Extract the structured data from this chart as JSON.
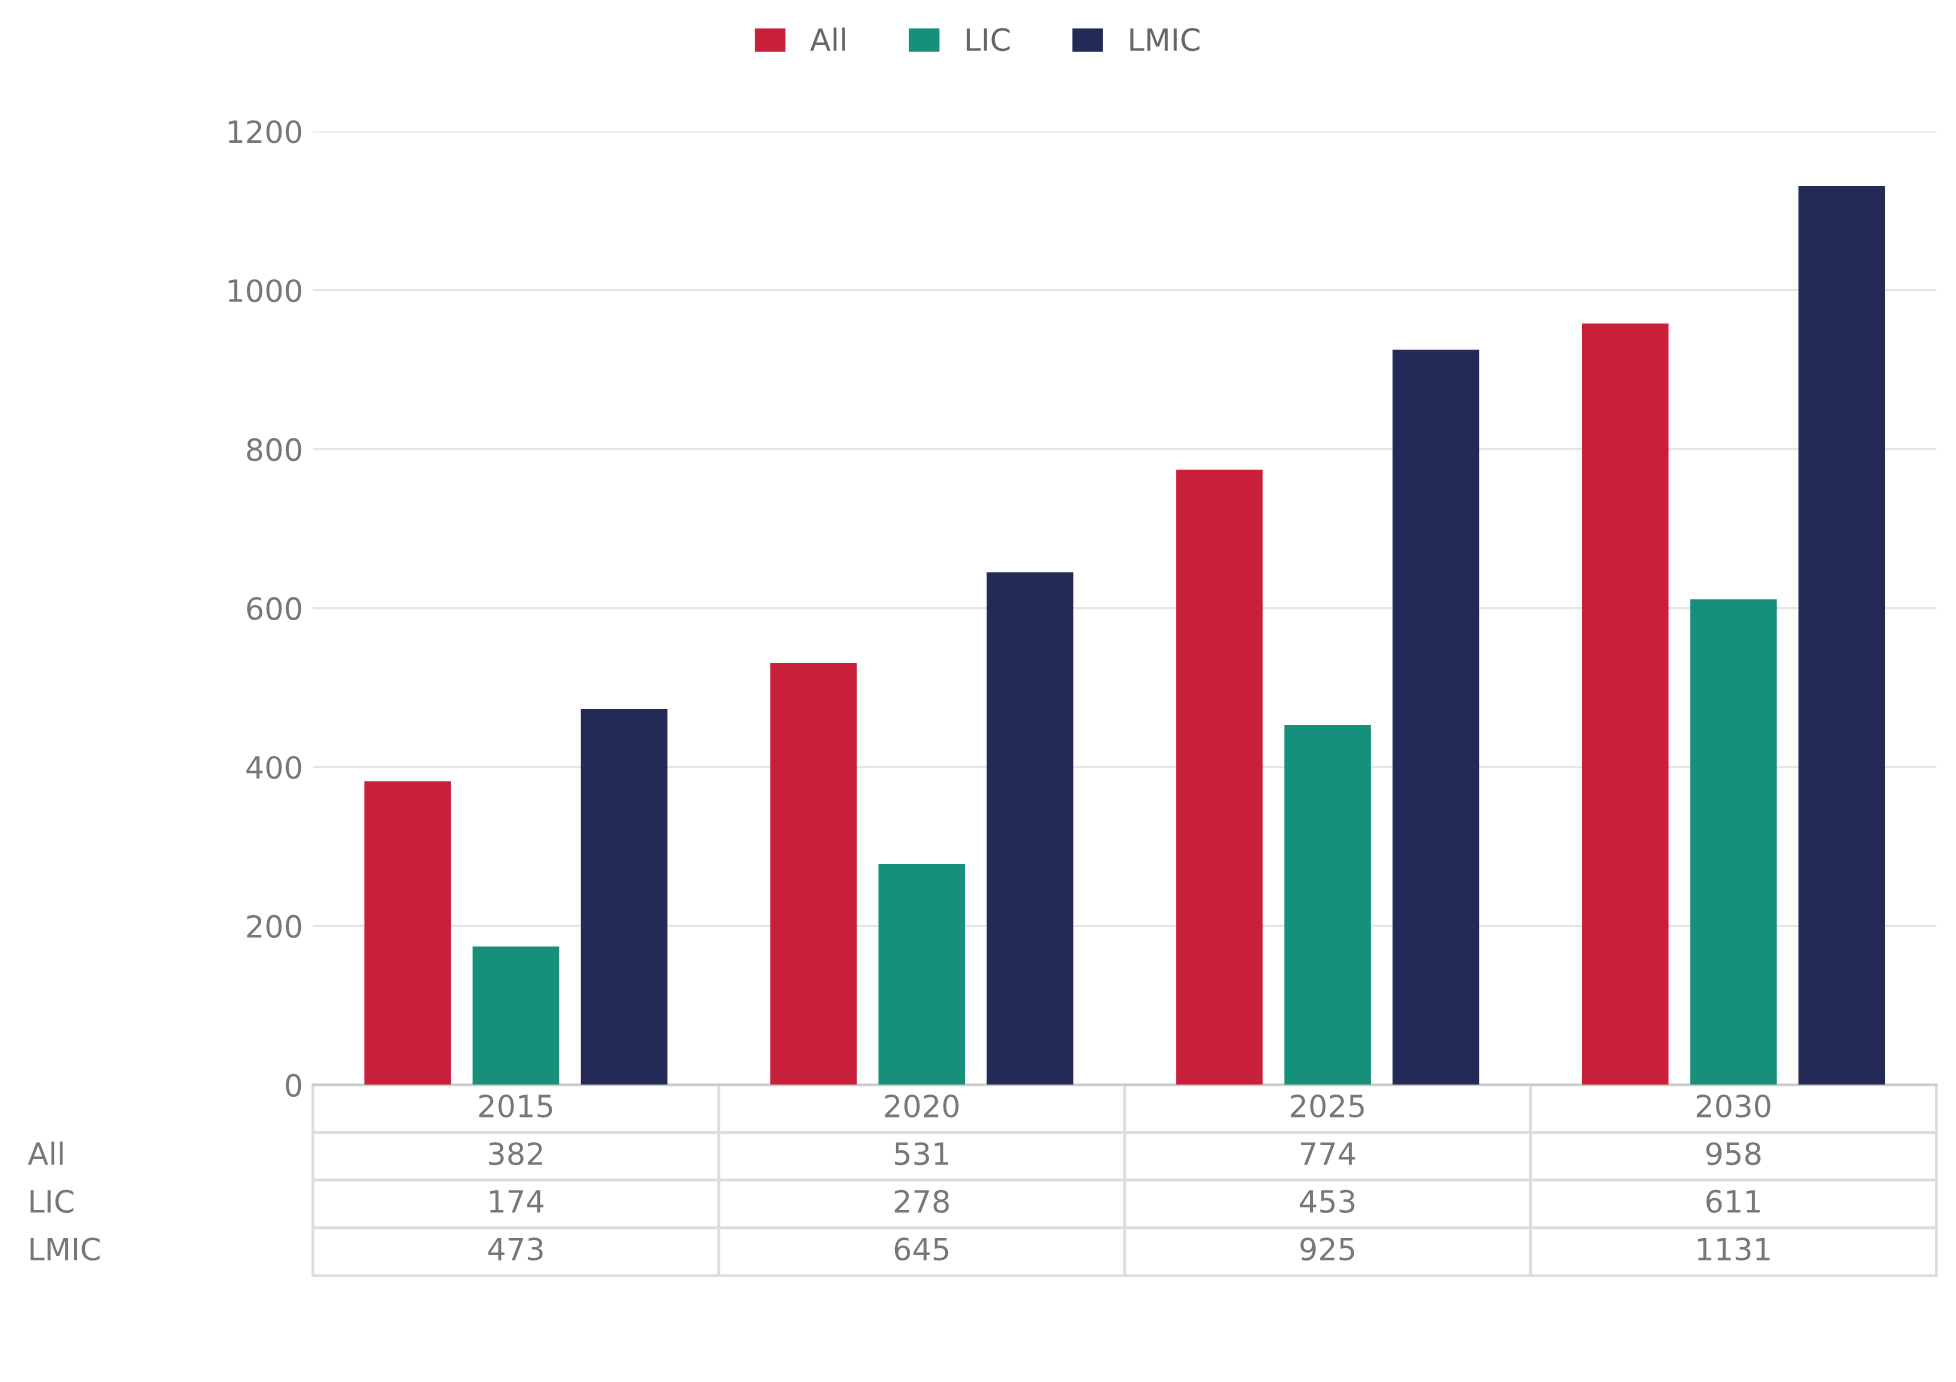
{
  "chart_data": {
    "type": "bar",
    "categories": [
      "2015",
      "2020",
      "2025",
      "2030"
    ],
    "series": [
      {
        "name": "All",
        "color": "#c8203a",
        "values": [
          382,
          531,
          774,
          958
        ]
      },
      {
        "name": "LIC",
        "color": "#16907a",
        "values": [
          174,
          278,
          453,
          611
        ]
      },
      {
        "name": "LMIC",
        "color": "#232a55",
        "values": [
          473,
          645,
          925,
          1131
        ]
      }
    ],
    "ylim": [
      0,
      1200
    ],
    "yticks": [
      0,
      200,
      400,
      600,
      800,
      1000,
      1200
    ],
    "grid": "y",
    "legend": "top",
    "data_labels": true
  }
}
